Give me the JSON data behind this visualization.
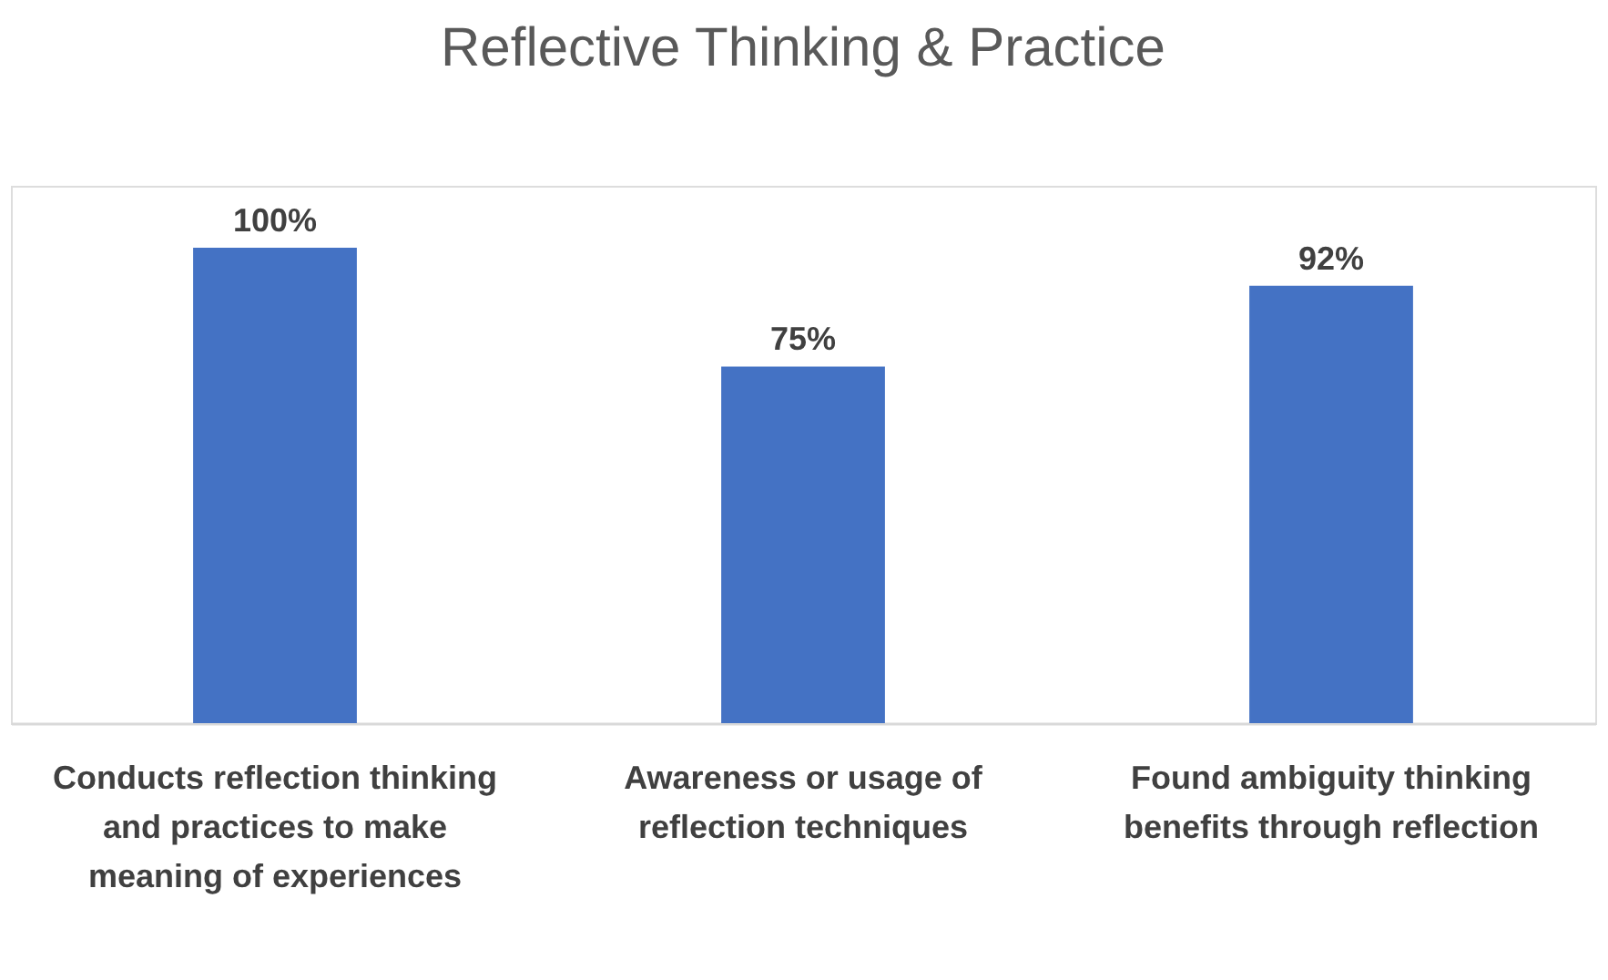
{
  "chart_data": {
    "type": "bar",
    "title": "Reflective Thinking & Practice",
    "categories": [
      "Conducts reflection thinking and practices to make meaning of experiences",
      "Awareness or usage of reflection techniques",
      "Found ambiguity thinking benefits through reflection"
    ],
    "values": [
      100,
      75,
      92
    ],
    "value_labels": [
      "100%",
      "75%",
      "92%"
    ],
    "color": "#4472c4"
  }
}
